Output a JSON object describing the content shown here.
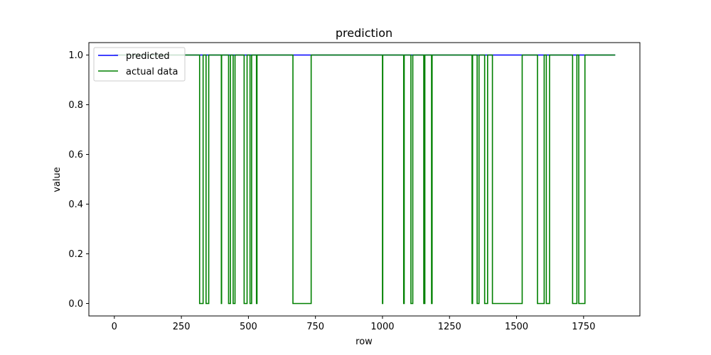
{
  "chart_data": {
    "type": "line",
    "title": "prediction",
    "xlabel": "row",
    "ylabel": "value",
    "xlim": [
      -95,
      1960
    ],
    "ylim": [
      -0.05,
      1.05
    ],
    "xticks": [
      0,
      250,
      500,
      750,
      1000,
      1250,
      1500,
      1750
    ],
    "yticks": [
      0.0,
      0.2,
      0.4,
      0.6,
      0.8,
      1.0
    ],
    "xtick_labels": [
      "0",
      "250",
      "500",
      "750",
      "1000",
      "1250",
      "1500",
      "1750"
    ],
    "ytick_labels": [
      "0.0",
      "0.2",
      "0.4",
      "0.6",
      "0.8",
      "1.0"
    ],
    "legend_position": "top-left",
    "x_max": 1868,
    "series": [
      {
        "name": "predicted",
        "color": "#0000ff",
        "constant_value": 1.0
      },
      {
        "name": "actual data",
        "color": "#008000",
        "zero_intervals": [
          [
            318,
            331
          ],
          [
            342,
            352
          ],
          [
            399,
            400
          ],
          [
            426,
            433
          ],
          [
            443,
            450
          ],
          [
            484,
            495
          ],
          [
            506,
            512
          ],
          [
            530,
            532
          ],
          [
            666,
            734
          ],
          [
            1000,
            1001
          ],
          [
            1079,
            1081
          ],
          [
            1106,
            1113
          ],
          [
            1154,
            1158
          ],
          [
            1183,
            1185
          ],
          [
            1334,
            1336
          ],
          [
            1353,
            1360
          ],
          [
            1381,
            1392
          ],
          [
            1410,
            1521
          ],
          [
            1578,
            1603
          ],
          [
            1611,
            1623
          ],
          [
            1709,
            1725
          ],
          [
            1732,
            1755
          ]
        ]
      }
    ]
  }
}
